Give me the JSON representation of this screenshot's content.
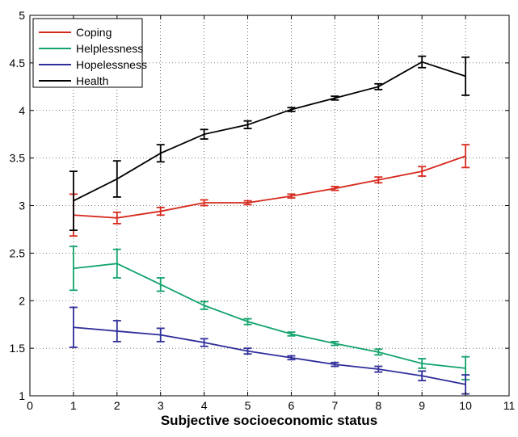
{
  "chart_data": {
    "type": "line",
    "title": "",
    "xlabel": "Subjective socioeconomic status",
    "ylabel": "",
    "xlim": [
      0,
      11
    ],
    "ylim": [
      1,
      5
    ],
    "xticks": [
      "0",
      "1",
      "2",
      "3",
      "4",
      "5",
      "6",
      "7",
      "8",
      "9",
      "10",
      "11"
    ],
    "yticks": [
      "1",
      "1.5",
      "2",
      "2.5",
      "3",
      "3.5",
      "4",
      "4.5",
      "5"
    ],
    "grid": true,
    "legend_position": "top-left",
    "x": [
      1,
      2,
      3,
      4,
      5,
      6,
      7,
      8,
      9,
      10
    ],
    "series": [
      {
        "name": "Coping",
        "color": "#d62a1e",
        "values": [
          2.9,
          2.87,
          2.94,
          3.03,
          3.03,
          3.1,
          3.18,
          3.27,
          3.36,
          3.52
        ],
        "errors": [
          0.22,
          0.06,
          0.04,
          0.03,
          0.02,
          0.02,
          0.02,
          0.03,
          0.05,
          0.12
        ]
      },
      {
        "name": "Helplessness",
        "color": "#13a36c",
        "values": [
          2.34,
          2.39,
          2.17,
          1.95,
          1.78,
          1.65,
          1.55,
          1.46,
          1.34,
          1.29
        ],
        "errors": [
          0.23,
          0.15,
          0.07,
          0.04,
          0.03,
          0.02,
          0.02,
          0.03,
          0.05,
          0.12
        ]
      },
      {
        "name": "Hopelessness",
        "color": "#2f2e9a",
        "values": [
          1.72,
          1.68,
          1.64,
          1.56,
          1.47,
          1.4,
          1.33,
          1.28,
          1.21,
          1.12
        ],
        "errors": [
          0.21,
          0.11,
          0.07,
          0.04,
          0.03,
          0.02,
          0.02,
          0.03,
          0.05,
          0.1
        ]
      },
      {
        "name": "Health",
        "color": "#000000",
        "values": [
          3.05,
          3.28,
          3.55,
          3.75,
          3.85,
          4.01,
          4.13,
          4.25,
          4.51,
          4.36
        ],
        "errors": [
          0.31,
          0.19,
          0.09,
          0.05,
          0.04,
          0.02,
          0.02,
          0.03,
          0.06,
          0.2
        ]
      }
    ]
  }
}
